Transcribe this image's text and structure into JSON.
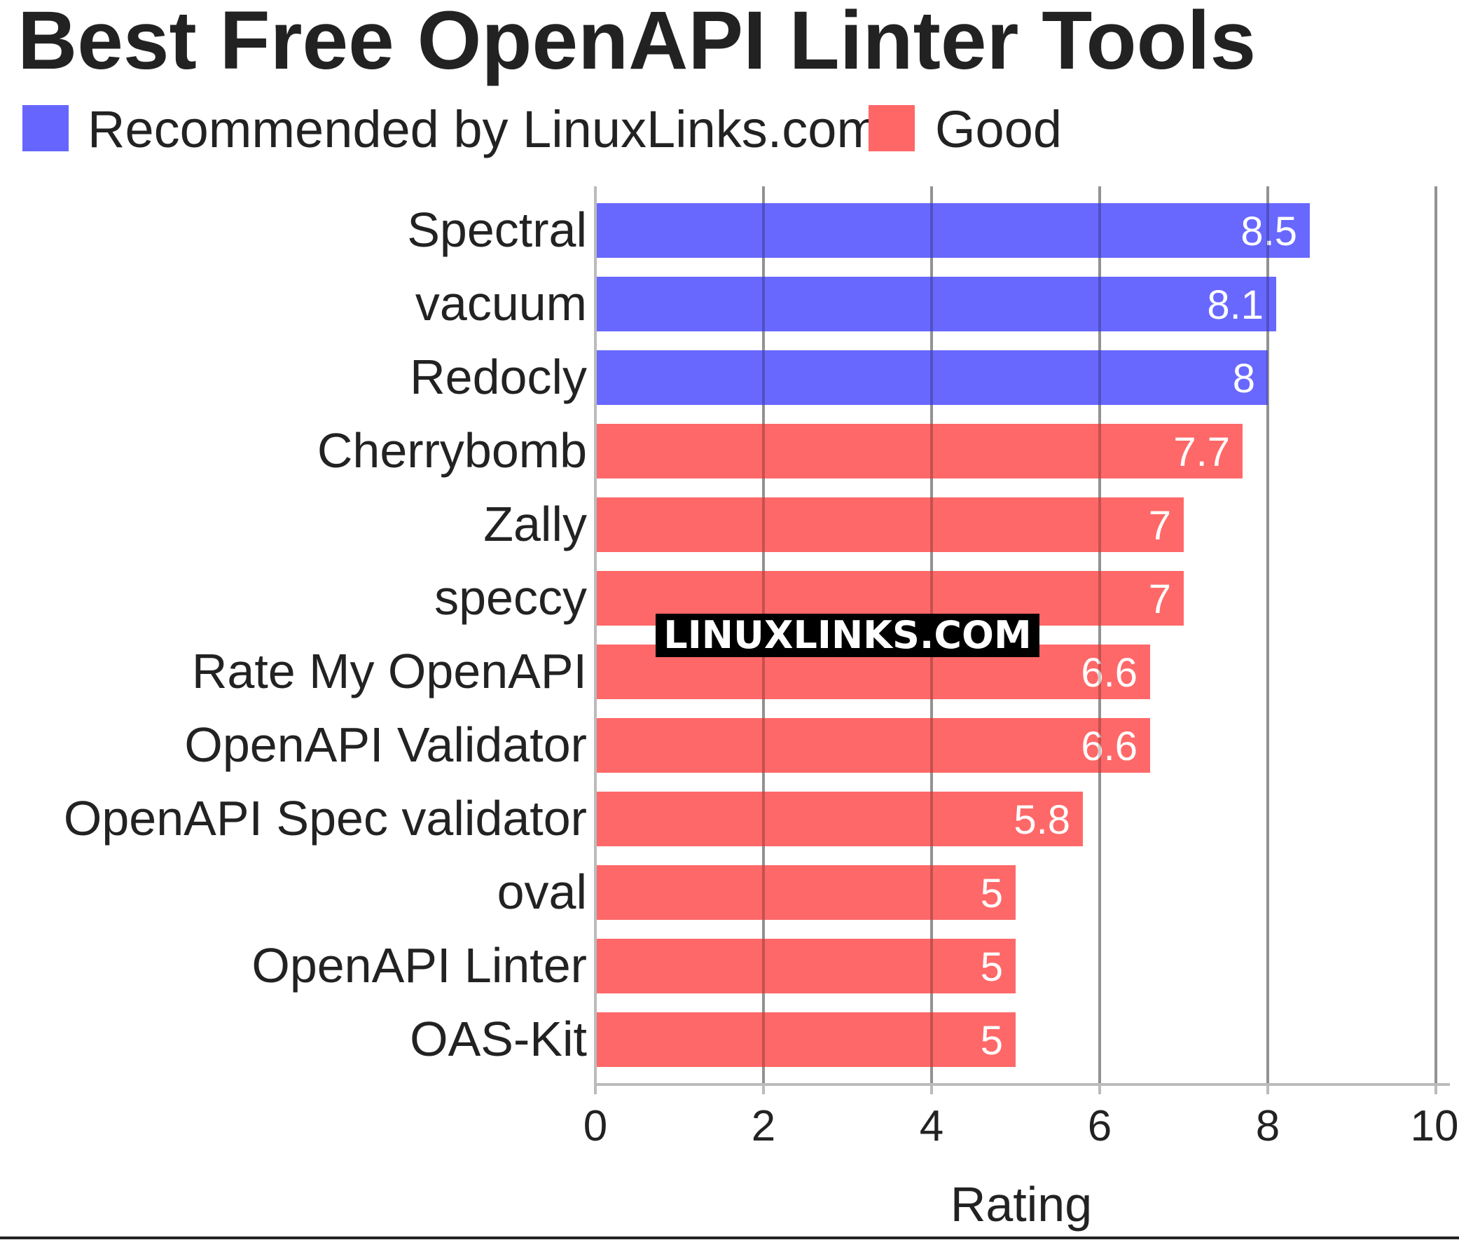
{
  "chart_data": {
    "type": "bar",
    "orientation": "horizontal",
    "title": "Best Free OpenAPI Linter Tools",
    "xlabel": "Rating",
    "ylabel": "",
    "xlim": [
      0,
      10
    ],
    "xticks": [
      0,
      2,
      4,
      6,
      8,
      10
    ],
    "grid": true,
    "legend": {
      "placement": "top-left",
      "entries": [
        {
          "name": "Recommended by LinuxLinks.com",
          "color": "#6666ff"
        },
        {
          "name": "Good",
          "color": "#ff6666"
        }
      ]
    },
    "categories": [
      "Spectral",
      "vacuum",
      "Redocly",
      "Cherrybomb",
      "Zally",
      "speccy",
      "Rate My OpenAPI",
      "OpenAPI Validator",
      "OpenAPI Spec validator",
      "oval",
      "OpenAPI Linter",
      "OAS-Kit"
    ],
    "values": [
      8.5,
      8.1,
      8,
      7.7,
      7,
      7,
      6.6,
      6.6,
      5.8,
      5,
      5,
      5
    ],
    "value_labels": [
      "8.5",
      "8.1",
      "8",
      "7.7",
      "7",
      "7",
      "6.6",
      "6.6",
      "5.8",
      "5",
      "5",
      "5"
    ],
    "groups": [
      "Recommended by LinuxLinks.com",
      "Recommended by LinuxLinks.com",
      "Recommended by LinuxLinks.com",
      "Good",
      "Good",
      "Good",
      "Good",
      "Good",
      "Good",
      "Good",
      "Good",
      "Good"
    ]
  },
  "watermark": "LINUXLINKS.COM",
  "colors": {
    "recommended": "#6666ff",
    "good": "#ff6666",
    "text": "#222222",
    "grid": "#bbbbbb"
  }
}
